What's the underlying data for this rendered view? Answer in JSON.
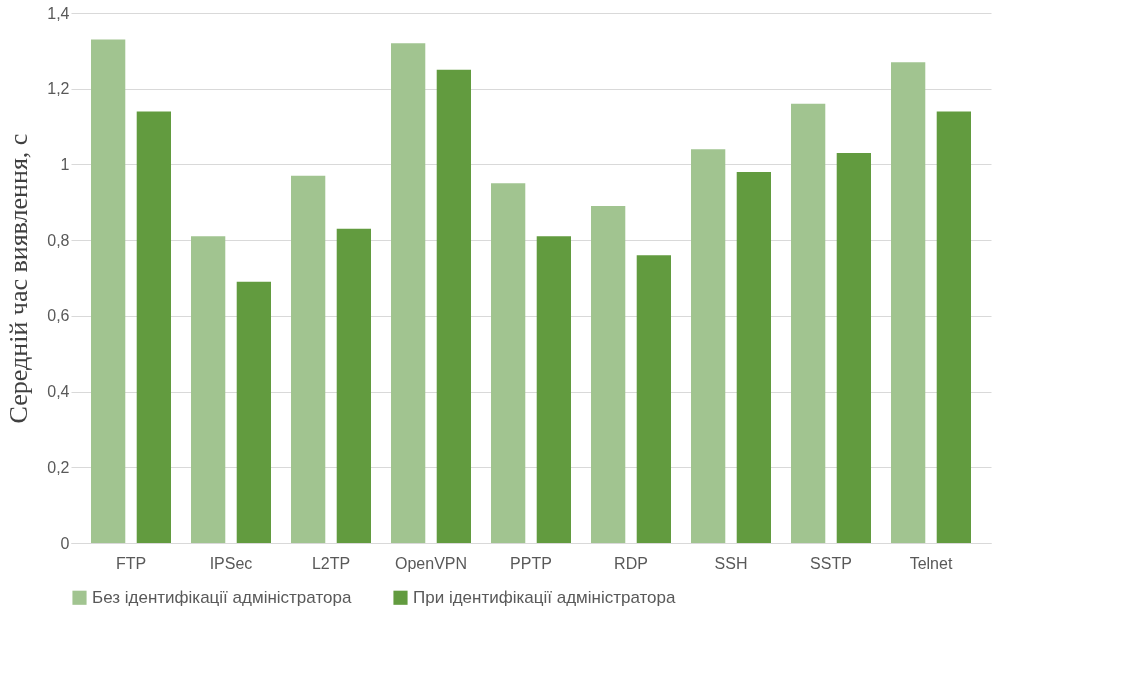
{
  "chart_data": {
    "type": "bar",
    "ylabel": "Середній час виявлення, с",
    "categories": [
      "FTP",
      "IPSec",
      "L2TP",
      "OpenVPN",
      "PPTP",
      "RDP",
      "SSH",
      "SSTP",
      "Telnet"
    ],
    "series": [
      {
        "name": "Без ідентифікації адміністратора",
        "color": "#a1c490",
        "values": [
          1.33,
          0.81,
          0.97,
          1.32,
          0.95,
          0.89,
          1.04,
          1.16,
          1.27
        ]
      },
      {
        "name": "При ідентифікації адміністратора",
        "color": "#629b3f",
        "values": [
          1.14,
          0.69,
          0.83,
          1.25,
          0.81,
          0.76,
          0.98,
          1.03,
          1.14
        ]
      }
    ],
    "ylim": [
      0,
      1.4
    ],
    "yticks": [
      0,
      {
        "value": 0.2,
        "label": "0,2"
      },
      {
        "value": 0.4,
        "label": "0,4"
      },
      {
        "value": 0.6,
        "label": "0,6"
      },
      {
        "value": 0.8,
        "label": "0,8"
      },
      1,
      {
        "value": 1.2,
        "label": "1,2"
      },
      {
        "value": 1.4,
        "label": "1,4"
      }
    ],
    "grid": "y",
    "legend": "bottom"
  }
}
